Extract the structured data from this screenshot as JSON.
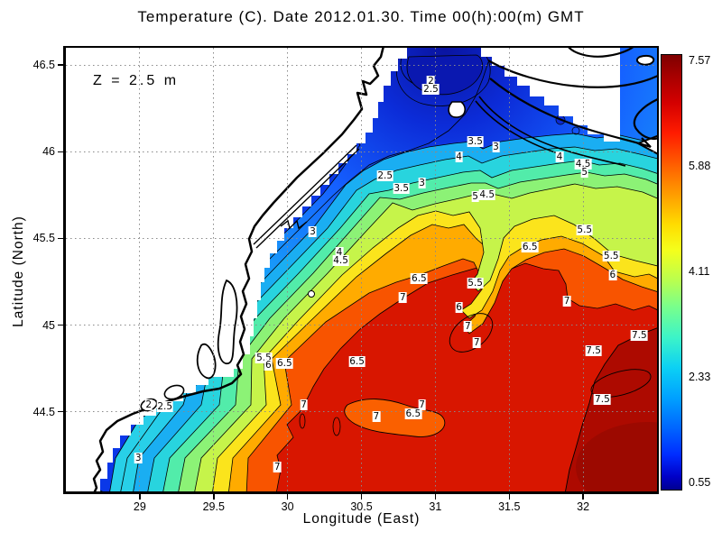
{
  "title": "Temperature (C). Date 2012.01.30. Time 00(h):00(m) GMT",
  "annotation": "Z = 2.5 m",
  "chart_data": {
    "type": "heatmap",
    "title": "Temperature (C). Date 2012.01.30. Time 00(h):00(m) GMT",
    "depth_annotation": "Z = 2.5 m",
    "xlabel": "Longitude (East)",
    "ylabel": "Latitude (North)",
    "xlim": [
      28.5,
      32.5
    ],
    "ylim": [
      44.04,
      46.6
    ],
    "xtick_values": [
      29,
      29.5,
      30,
      30.5,
      31,
      31.5,
      32
    ],
    "xtick_labels": [
      "29",
      "29.5",
      "30",
      "30.5",
      "31",
      "31.5",
      "32"
    ],
    "ytick_values": [
      44.5,
      45,
      45.5,
      46,
      46.5
    ],
    "ytick_labels": [
      "44.5",
      "45",
      "45.5",
      "46",
      "46.5"
    ],
    "grid": true,
    "units": "C",
    "contour_interval": 0.5,
    "colorbar": {
      "min": 0.55,
      "max": 7.57,
      "tick_labels": [
        "7.57",
        "5.88",
        "4.11",
        "2.33",
        "0.55"
      ],
      "colormap": "jet"
    },
    "station_marker": {
      "lon": 30.16,
      "lat": 45.18
    },
    "contour_labels": [
      {
        "v": "2",
        "lon": 30.97,
        "lat": 46.41
      },
      {
        "v": "2.5",
        "lon": 30.97,
        "lat": 46.36
      },
      {
        "v": "3.5",
        "lon": 31.27,
        "lat": 46.06
      },
      {
        "v": "3",
        "lon": 31.41,
        "lat": 46.03
      },
      {
        "v": "4",
        "lon": 31.16,
        "lat": 45.97
      },
      {
        "v": "4",
        "lon": 31.84,
        "lat": 45.97
      },
      {
        "v": "4.5",
        "lon": 32.0,
        "lat": 45.93
      },
      {
        "v": "5",
        "lon": 32.01,
        "lat": 45.88
      },
      {
        "v": "2.5",
        "lon": 30.66,
        "lat": 45.86
      },
      {
        "v": "3",
        "lon": 30.91,
        "lat": 45.82
      },
      {
        "v": "3.5",
        "lon": 30.77,
        "lat": 45.79
      },
      {
        "v": "4.5",
        "lon": 31.35,
        "lat": 45.75
      },
      {
        "v": "5",
        "lon": 31.27,
        "lat": 45.74
      },
      {
        "v": "3",
        "lon": 30.17,
        "lat": 45.54
      },
      {
        "v": "5.5",
        "lon": 32.01,
        "lat": 45.55
      },
      {
        "v": "6.5",
        "lon": 31.64,
        "lat": 45.45
      },
      {
        "v": "4",
        "lon": 30.35,
        "lat": 45.42
      },
      {
        "v": "5.5",
        "lon": 32.19,
        "lat": 45.4
      },
      {
        "v": "4.5",
        "lon": 30.36,
        "lat": 45.37
      },
      {
        "v": "6",
        "lon": 32.2,
        "lat": 45.29
      },
      {
        "v": "6.5",
        "lon": 30.89,
        "lat": 45.27
      },
      {
        "v": "5.5",
        "lon": 31.27,
        "lat": 45.24
      },
      {
        "v": "7",
        "lon": 30.78,
        "lat": 45.16
      },
      {
        "v": "7",
        "lon": 31.89,
        "lat": 45.14
      },
      {
        "v": "6",
        "lon": 31.16,
        "lat": 45.1
      },
      {
        "v": "7",
        "lon": 31.22,
        "lat": 44.99
      },
      {
        "v": "7.5",
        "lon": 32.38,
        "lat": 44.94
      },
      {
        "v": "7",
        "lon": 31.28,
        "lat": 44.9
      },
      {
        "v": "7.5",
        "lon": 32.07,
        "lat": 44.85
      },
      {
        "v": "5.5",
        "lon": 29.84,
        "lat": 44.81
      },
      {
        "v": "6",
        "lon": 29.87,
        "lat": 44.77
      },
      {
        "v": "6.5",
        "lon": 29.98,
        "lat": 44.78
      },
      {
        "v": "6.5",
        "lon": 30.47,
        "lat": 44.79
      },
      {
        "v": "2",
        "lon": 29.06,
        "lat": 44.54
      },
      {
        "v": "2.5",
        "lon": 29.17,
        "lat": 44.53
      },
      {
        "v": "7",
        "lon": 30.11,
        "lat": 44.54
      },
      {
        "v": "7.5",
        "lon": 32.13,
        "lat": 44.57
      },
      {
        "v": "7",
        "lon": 30.91,
        "lat": 44.54
      },
      {
        "v": "6.5",
        "lon": 30.85,
        "lat": 44.49
      },
      {
        "v": "7",
        "lon": 30.6,
        "lat": 44.47
      },
      {
        "v": "3",
        "lon": 28.99,
        "lat": 44.23
      },
      {
        "v": "7",
        "lon": 29.93,
        "lat": 44.18
      }
    ]
  },
  "colors": {
    "land": "#ffffff",
    "coastline": "#000000",
    "grid": "#8a8a8a",
    "contour_line": "#000000",
    "cold_extreme": "#000091",
    "warm_extreme": "#7f0000"
  }
}
